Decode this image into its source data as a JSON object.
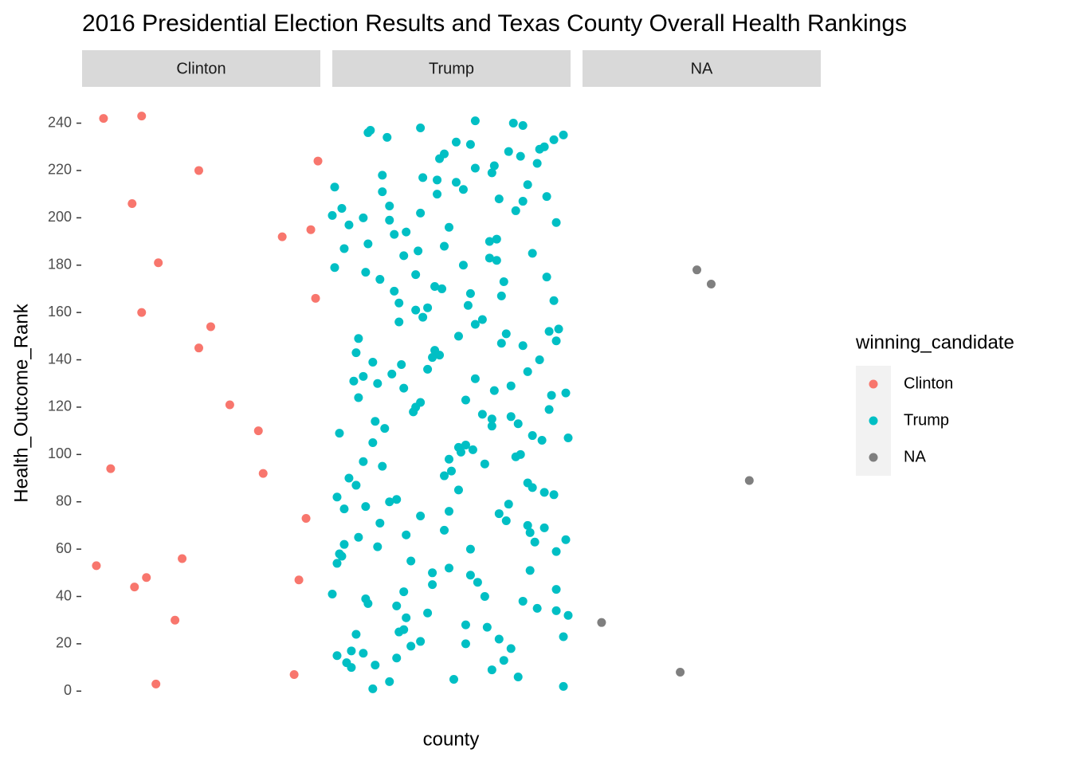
{
  "chart_data": {
    "type": "scatter",
    "title": "2016 Presidential Election Results and Texas County Overall Health Rankings",
    "x_label": "county",
    "y_label": "Health_Outcome_Rank",
    "legend_title": "winning_candidate",
    "legend_position": "right",
    "ylim": [
      -10,
      255
    ],
    "yticks": [
      0,
      20,
      40,
      60,
      80,
      100,
      120,
      140,
      160,
      180,
      200,
      220,
      240
    ],
    "xlim": [
      0,
      1
    ],
    "grid": false,
    "series": [
      {
        "name": "Clinton",
        "color": "#F8766D",
        "x": [
          0.09,
          0.25,
          0.49,
          0.99,
          0.21,
          0.84,
          0.96,
          0.32,
          0.98,
          0.25,
          0.54,
          0.49,
          0.62,
          0.74,
          0.12,
          0.76,
          0.94,
          0.06,
          0.42,
          0.22,
          0.27,
          0.91,
          0.39,
          0.31,
          0.89
        ],
        "values": [
          242,
          243,
          220,
          224,
          206,
          192,
          195,
          181,
          166,
          160,
          154,
          145,
          121,
          110,
          94,
          92,
          73,
          53,
          56,
          44,
          48,
          47,
          30,
          3,
          7
        ]
      },
      {
        "name": "Trump",
        "color": "#00BFC4",
        "x": [
          0.16,
          0.15,
          0.23,
          0.37,
          0.6,
          0.76,
          0.8,
          0.97,
          0.93,
          0.89,
          0.87,
          0.52,
          0.58,
          0.47,
          0.45,
          0.74,
          0.79,
          0.86,
          0.6,
          0.68,
          0.67,
          0.01,
          0.21,
          0.38,
          0.44,
          0.52,
          0.55,
          0.21,
          0.44,
          0.82,
          0.9,
          0.7,
          0.8,
          0.24,
          0.04,
          0.77,
          0.37,
          0.0,
          0.13,
          0.24,
          0.94,
          0.07,
          0.49,
          0.31,
          0.26,
          0.69,
          0.66,
          0.15,
          0.47,
          0.05,
          0.36,
          0.84,
          0.3,
          0.66,
          0.69,
          0.55,
          0.01,
          0.14,
          0.35,
          0.9,
          0.2,
          0.72,
          0.43,
          0.46,
          0.26,
          0.58,
          0.71,
          0.93,
          0.28,
          0.57,
          0.35,
          0.4,
          0.38,
          0.28,
          0.63,
          0.6,
          0.95,
          0.91,
          0.73,
          0.53,
          0.11,
          0.94,
          0.71,
          0.8,
          0.43,
          0.45,
          0.42,
          0.1,
          0.87,
          0.17,
          0.29,
          0.4,
          0.82,
          0.25,
          0.13,
          0.6,
          0.09,
          0.19,
          0.75,
          0.3,
          0.68,
          0.98,
          0.92,
          0.56,
          0.11,
          0.37,
          0.35,
          0.34,
          0.91,
          0.63,
          0.67,
          0.75,
          0.18,
          0.78,
          0.67,
          0.22,
          0.03,
          0.84,
          0.88,
          0.99,
          0.17,
          0.56,
          0.53,
          0.54,
          0.59,
          0.79,
          0.77,
          0.49,
          0.64,
          0.13,
          0.21,
          0.5,
          0.47,
          0.07,
          0.82,
          0.1,
          0.84,
          0.53,
          0.89,
          0.93,
          0.02,
          0.27,
          0.24,
          0.74,
          0.14,
          0.05,
          0.49,
          0.7,
          0.37,
          0.73,
          0.2,
          0.82,
          0.89,
          0.47,
          0.83,
          0.31,
          0.11,
          0.98,
          0.85,
          0.05,
          0.19,
          0.58,
          0.94,
          0.03,
          0.04,
          0.33,
          0.02,
          0.49,
          0.42,
          0.83,
          0.58,
          0.61,
          0.0,
          0.42,
          0.3,
          0.94,
          0.64,
          0.14,
          0.15,
          0.8,
          0.27,
          0.86,
          0.94,
          0.4,
          0.99,
          0.31,
          0.56,
          0.65,
          0.3,
          0.28,
          0.1,
          0.97,
          0.7,
          0.37,
          0.56,
          0.33,
          0.75,
          0.08,
          0.13,
          0.02,
          0.27,
          0.72,
          0.06,
          0.18,
          0.08,
          0.67,
          0.78,
          0.51,
          0.24,
          0.97,
          0.17
        ],
        "values": [
          237,
          236,
          234,
          238,
          241,
          240,
          239,
          235,
          233,
          230,
          229,
          232,
          231,
          227,
          225,
          228,
          226,
          223,
          221,
          222,
          219,
          213,
          218,
          217,
          216,
          215,
          212,
          211,
          210,
          214,
          209,
          208,
          207,
          205,
          204,
          203,
          202,
          201,
          200,
          199,
          198,
          197,
          196,
          194,
          193,
          191,
          190,
          189,
          188,
          187,
          186,
          185,
          184,
          183,
          182,
          180,
          179,
          177,
          176,
          175,
          174,
          173,
          171,
          170,
          169,
          168,
          167,
          165,
          164,
          163,
          161,
          162,
          158,
          156,
          157,
          155,
          153,
          152,
          151,
          150,
          149,
          148,
          147,
          146,
          144,
          142,
          141,
          143,
          140,
          139,
          138,
          136,
          135,
          134,
          133,
          132,
          131,
          130,
          129,
          128,
          127,
          126,
          125,
          123,
          124,
          122,
          120,
          118,
          119,
          117,
          115,
          116,
          114,
          113,
          112,
          111,
          109,
          108,
          106,
          107,
          105,
          104,
          103,
          101,
          102,
          100,
          99,
          98,
          96,
          97,
          95,
          93,
          91,
          90,
          88,
          87,
          86,
          85,
          84,
          83,
          82,
          81,
          80,
          79,
          78,
          77,
          76,
          75,
          74,
          72,
          71,
          70,
          69,
          68,
          67,
          66,
          65,
          64,
          63,
          62,
          61,
          60,
          59,
          58,
          57,
          55,
          54,
          52,
          50,
          51,
          49,
          46,
          41,
          45,
          42,
          43,
          40,
          39,
          37,
          38,
          36,
          35,
          34,
          33,
          32,
          31,
          28,
          27,
          26,
          25,
          24,
          23,
          22,
          21,
          20,
          19,
          18,
          17,
          16,
          15,
          14,
          13,
          12,
          11,
          10,
          9,
          6,
          5,
          4,
          2,
          1
        ]
      },
      {
        "name": "NA",
        "color": "#7F7F7F",
        "x": [
          0.48,
          0.54,
          0.7,
          0.08,
          0.41
        ],
        "values": [
          178,
          172,
          89,
          29,
          8
        ]
      }
    ]
  }
}
